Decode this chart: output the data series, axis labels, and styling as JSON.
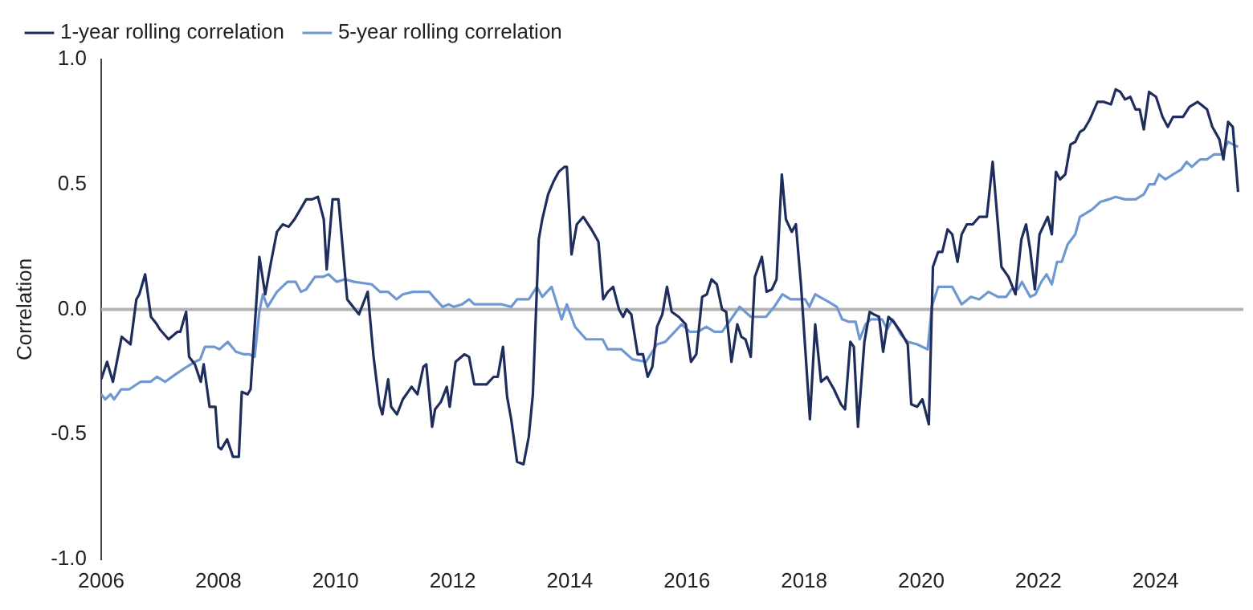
{
  "chart_data": {
    "type": "line",
    "ylabel": "Correlation",
    "xlim": [
      2006,
      2025.5
    ],
    "xticks": [
      2006,
      2008,
      2010,
      2012,
      2014,
      2016,
      2018,
      2020,
      2022,
      2024
    ],
    "ylim": [
      -1,
      1
    ],
    "yticks": [
      {
        "value": -1,
        "label": "-1.0"
      },
      {
        "value": -0.5,
        "label": "-0.5"
      },
      {
        "value": 0,
        "label": "0.0"
      },
      {
        "value": 0.5,
        "label": "0.5"
      },
      {
        "value": 1,
        "label": "1.0"
      }
    ],
    "grid": false,
    "legend": "top left",
    "ref_lines": [
      {
        "axis": "y",
        "value": 0,
        "color": "#b3b3b3"
      }
    ],
    "series": [
      {
        "name": "1-year rolling correlation",
        "color": "#1f2d5c",
        "x": [
          2006.0,
          2006.1,
          2006.2,
          2006.35,
          2006.5,
          2006.6,
          2006.65,
          2006.75,
          2006.85,
          2006.95,
          2007.0,
          2007.15,
          2007.3,
          2007.35,
          2007.45,
          2007.5,
          2007.6,
          2007.7,
          2007.75,
          2007.85,
          2007.95,
          2008.0,
          2008.05,
          2008.15,
          2008.25,
          2008.35,
          2008.4,
          2008.5,
          2008.55,
          2008.7,
          2008.8,
          2008.9,
          2009.0,
          2009.1,
          2009.2,
          2009.3,
          2009.45,
          2009.5,
          2009.6,
          2009.7,
          2009.8,
          2009.85,
          2009.95,
          2010.05,
          2010.2,
          2010.3,
          2010.4,
          2010.55,
          2010.65,
          2010.75,
          2010.8,
          2010.9,
          2010.95,
          2011.05,
          2011.15,
          2011.3,
          2011.4,
          2011.5,
          2011.55,
          2011.65,
          2011.7,
          2011.8,
          2011.9,
          2011.95,
          2012.05,
          2012.2,
          2012.28,
          2012.37,
          2012.46,
          2012.58,
          2012.7,
          2012.77,
          2012.86,
          2012.93,
          2013.0,
          2013.1,
          2013.21,
          2013.3,
          2013.37,
          2013.47,
          2013.53,
          2013.63,
          2013.72,
          2013.81,
          2013.91,
          2013.95,
          2014.03,
          2014.12,
          2014.23,
          2014.37,
          2014.49,
          2014.57,
          2014.65,
          2014.74,
          2014.84,
          2014.91,
          2014.97,
          2015.05,
          2015.16,
          2015.25,
          2015.33,
          2015.41,
          2015.49,
          2015.58,
          2015.66,
          2015.74,
          2015.86,
          2015.98,
          2016.07,
          2016.16,
          2016.26,
          2016.34,
          2016.42,
          2016.51,
          2016.6,
          2016.67,
          2016.76,
          2016.86,
          2016.93,
          2017.0,
          2017.09,
          2017.16,
          2017.28,
          2017.36,
          2017.45,
          2017.53,
          2017.62,
          2017.69,
          2017.79,
          2017.86,
          2017.95,
          2018.1,
          2018.19,
          2018.29,
          2018.39,
          2018.51,
          2018.63,
          2018.7,
          2018.79,
          2018.85,
          2018.92,
          2019.03,
          2019.12,
          2019.19,
          2019.28,
          2019.35,
          2019.44,
          2019.53,
          2019.65,
          2019.77,
          2019.83,
          2019.93,
          2020.02,
          2020.13,
          2020.2,
          2020.29,
          2020.36,
          2020.45,
          2020.53,
          2020.62,
          2020.69,
          2020.78,
          2020.88,
          2020.99,
          2021.12,
          2021.22,
          2021.37,
          2021.49,
          2021.61,
          2021.71,
          2021.79,
          2021.86,
          2021.94,
          2022.02,
          2022.16,
          2022.23,
          2022.3,
          2022.37,
          2022.46,
          2022.55,
          2022.63,
          2022.71,
          2022.78,
          2022.88,
          2023.01,
          2023.12,
          2023.24,
          2023.32,
          2023.4,
          2023.48,
          2023.57,
          2023.66,
          2023.73,
          2023.8,
          2023.89,
          2024.01,
          2024.12,
          2024.21,
          2024.3,
          2024.47,
          2024.58,
          2024.72,
          2024.88,
          2024.97,
          2025.09,
          2025.16,
          2025.24,
          2025.32,
          2025.41
        ],
        "values": [
          -0.28,
          -0.21,
          -0.29,
          -0.11,
          -0.14,
          0.04,
          0.06,
          0.14,
          -0.03,
          -0.06,
          -0.08,
          -0.12,
          -0.09,
          -0.09,
          -0.01,
          -0.19,
          -0.22,
          -0.29,
          -0.22,
          -0.39,
          -0.39,
          -0.55,
          -0.56,
          -0.52,
          -0.59,
          -0.59,
          -0.33,
          -0.34,
          -0.32,
          0.21,
          0.06,
          0.19,
          0.31,
          0.34,
          0.33,
          0.36,
          0.42,
          0.44,
          0.44,
          0.45,
          0.36,
          0.16,
          0.44,
          0.44,
          0.04,
          0.01,
          -0.02,
          0.07,
          -0.19,
          -0.38,
          -0.42,
          -0.28,
          -0.39,
          -0.42,
          -0.36,
          -0.31,
          -0.34,
          -0.23,
          -0.22,
          -0.47,
          -0.4,
          -0.37,
          -0.31,
          -0.39,
          -0.21,
          -0.18,
          -0.19,
          -0.3,
          -0.3,
          -0.3,
          -0.27,
          -0.27,
          -0.15,
          -0.35,
          -0.44,
          -0.61,
          -0.62,
          -0.51,
          -0.34,
          0.28,
          0.36,
          0.46,
          0.51,
          0.55,
          0.57,
          0.57,
          0.22,
          0.34,
          0.37,
          0.32,
          0.27,
          0.04,
          0.07,
          0.09,
          0.0,
          -0.03,
          0.0,
          -0.02,
          -0.18,
          -0.18,
          -0.27,
          -0.23,
          -0.07,
          -0.02,
          0.09,
          -0.01,
          -0.03,
          -0.06,
          -0.21,
          -0.18,
          0.05,
          0.06,
          0.12,
          0.1,
          0.0,
          -0.01,
          -0.21,
          -0.06,
          -0.11,
          -0.12,
          -0.19,
          0.13,
          0.21,
          0.07,
          0.08,
          0.12,
          0.54,
          0.36,
          0.31,
          0.34,
          0.09,
          -0.44,
          -0.06,
          -0.29,
          -0.27,
          -0.32,
          -0.38,
          -0.4,
          -0.13,
          -0.15,
          -0.47,
          -0.13,
          -0.01,
          -0.02,
          -0.03,
          -0.17,
          -0.03,
          -0.05,
          -0.09,
          -0.14,
          -0.38,
          -0.39,
          -0.36,
          -0.46,
          0.17,
          0.23,
          0.23,
          0.32,
          0.3,
          0.19,
          0.3,
          0.34,
          0.34,
          0.37,
          0.37,
          0.59,
          0.17,
          0.13,
          0.06,
          0.28,
          0.34,
          0.24,
          0.08,
          0.3,
          0.37,
          0.3,
          0.55,
          0.52,
          0.54,
          0.66,
          0.67,
          0.71,
          0.72,
          0.76,
          0.83,
          0.83,
          0.82,
          0.88,
          0.87,
          0.84,
          0.85,
          0.8,
          0.8,
          0.72,
          0.87,
          0.85,
          0.77,
          0.73,
          0.77,
          0.77,
          0.81,
          0.83,
          0.8,
          0.73,
          0.68,
          0.6,
          0.75,
          0.73,
          0.47
        ]
      },
      {
        "name": "5-year rolling correlation",
        "color": "#7098d0",
        "x": [
          2006.0,
          2006.07,
          2006.16,
          2006.22,
          2006.34,
          2006.48,
          2006.67,
          2006.84,
          2006.95,
          2007.09,
          2007.27,
          2007.46,
          2007.6,
          2007.69,
          2007.77,
          2007.93,
          2008.02,
          2008.16,
          2008.3,
          2008.44,
          2008.53,
          2008.62,
          2008.7,
          2008.76,
          2008.84,
          2009.0,
          2009.18,
          2009.32,
          2009.41,
          2009.5,
          2009.65,
          2009.79,
          2009.88,
          2010.02,
          2010.16,
          2010.32,
          2010.62,
          2010.76,
          2010.9,
          2011.04,
          2011.15,
          2011.32,
          2011.6,
          2011.71,
          2011.83,
          2011.93,
          2012.02,
          2012.16,
          2012.28,
          2012.37,
          2012.84,
          2013.0,
          2013.1,
          2013.3,
          2013.44,
          2013.53,
          2013.69,
          2013.86,
          2013.95,
          2014.09,
          2014.28,
          2014.56,
          2014.65,
          2014.88,
          2015.07,
          2015.3,
          2015.49,
          2015.63,
          2015.91,
          2016.05,
          2016.19,
          2016.33,
          2016.47,
          2016.6,
          2016.72,
          2016.9,
          2017.09,
          2017.35,
          2017.49,
          2017.63,
          2017.77,
          2018.02,
          2018.09,
          2018.19,
          2018.42,
          2018.56,
          2018.65,
          2018.77,
          2018.88,
          2018.95,
          2019.05,
          2019.14,
          2019.33,
          2019.42,
          2019.51,
          2019.65,
          2019.77,
          2019.93,
          2020.11,
          2020.18,
          2020.29,
          2020.53,
          2020.69,
          2020.85,
          2020.99,
          2021.15,
          2021.31,
          2021.45,
          2021.54,
          2021.65,
          2021.72,
          2021.86,
          2021.95,
          2022.05,
          2022.14,
          2022.23,
          2022.32,
          2022.4,
          2022.5,
          2022.63,
          2022.71,
          2022.78,
          2022.92,
          2023.06,
          2023.2,
          2023.32,
          2023.48,
          2023.66,
          2023.8,
          2023.89,
          2023.98,
          2024.06,
          2024.17,
          2024.3,
          2024.44,
          2024.53,
          2024.62,
          2024.76,
          2024.88,
          2025.0,
          2025.13,
          2025.24,
          2025.32,
          2025.41
        ],
        "values": [
          -0.34,
          -0.36,
          -0.34,
          -0.36,
          -0.32,
          -0.32,
          -0.29,
          -0.29,
          -0.27,
          -0.29,
          -0.26,
          -0.23,
          -0.21,
          -0.2,
          -0.15,
          -0.15,
          -0.16,
          -0.13,
          -0.17,
          -0.18,
          -0.18,
          -0.19,
          -0.01,
          0.06,
          0.01,
          0.07,
          0.11,
          0.11,
          0.07,
          0.08,
          0.13,
          0.13,
          0.14,
          0.11,
          0.12,
          0.11,
          0.1,
          0.07,
          0.07,
          0.04,
          0.06,
          0.07,
          0.07,
          0.04,
          0.01,
          0.02,
          0.01,
          0.02,
          0.04,
          0.02,
          0.02,
          0.01,
          0.04,
          0.04,
          0.09,
          0.05,
          0.09,
          -0.04,
          0.02,
          -0.07,
          -0.12,
          -0.12,
          -0.16,
          -0.16,
          -0.2,
          -0.21,
          -0.14,
          -0.13,
          -0.06,
          -0.09,
          -0.09,
          -0.07,
          -0.09,
          -0.09,
          -0.05,
          0.01,
          -0.03,
          -0.03,
          0.01,
          0.06,
          0.04,
          0.04,
          0.01,
          0.06,
          0.03,
          0.01,
          -0.04,
          -0.05,
          -0.05,
          -0.12,
          -0.06,
          -0.04,
          -0.04,
          -0.08,
          -0.04,
          -0.1,
          -0.13,
          -0.14,
          -0.16,
          0.01,
          0.09,
          0.09,
          0.02,
          0.05,
          0.04,
          0.07,
          0.05,
          0.05,
          0.08,
          0.08,
          0.11,
          0.05,
          0.06,
          0.11,
          0.14,
          0.1,
          0.19,
          0.19,
          0.26,
          0.3,
          0.37,
          0.38,
          0.4,
          0.43,
          0.44,
          0.45,
          0.44,
          0.44,
          0.46,
          0.5,
          0.5,
          0.54,
          0.52,
          0.54,
          0.56,
          0.59,
          0.57,
          0.6,
          0.6,
          0.62,
          0.62,
          0.67,
          0.66,
          0.65
        ]
      }
    ]
  }
}
